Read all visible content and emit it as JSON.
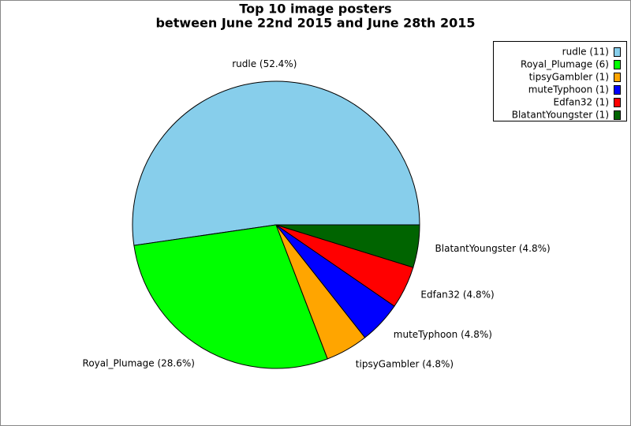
{
  "chart_data": {
    "type": "pie",
    "title": "Top 10 image posters",
    "subtitle": "between June 22nd 2015 and June 28th 2015",
    "categories": [
      "rudle (11)",
      "Royal_Plumage (6)",
      "tipsyGambler (1)",
      "muteTyphoon (1)",
      "Edfan32 (1)",
      "BlatantYoungster (1)"
    ],
    "values": [
      52.4,
      28.6,
      4.8,
      4.8,
      4.8,
      4.8
    ],
    "value_labels": [
      "rudle (52.4%)",
      "Royal_Plumage (28.6%)",
      "tipsyGambler (4.8%)",
      "muteTyphoon (4.8%)",
      "Edfan32 (4.8%)",
      "BlatantYoungster (4.8%)"
    ],
    "colors": [
      "#87ceeb",
      "#00ff00",
      "#ffa500",
      "#0000ff",
      "#ff0000",
      "#006400"
    ],
    "legend": "upper right"
  }
}
